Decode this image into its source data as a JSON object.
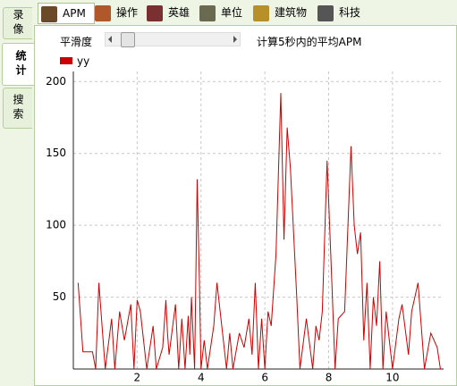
{
  "side_tabs": [
    "录像",
    "统计",
    "搜索"
  ],
  "tabs": [
    "APM",
    "操作",
    "英雄",
    "单位",
    "建筑物",
    "科技"
  ],
  "smoothing_label": "平滑度",
  "description": "计算5秒内的平均APM",
  "chart_data": {
    "type": "line",
    "x": [
      0.15,
      0.3,
      0.6,
      0.7,
      0.8,
      0.9,
      1.0,
      1.2,
      1.3,
      1.45,
      1.6,
      1.8,
      1.9,
      2.0,
      2.1,
      2.3,
      2.5,
      2.6,
      2.8,
      2.9,
      2.95,
      3.0,
      3.2,
      3.3,
      3.4,
      3.5,
      3.6,
      3.65,
      3.7,
      3.8,
      3.88,
      3.95,
      4.0,
      4.1,
      4.2,
      4.4,
      4.5,
      4.7,
      4.8,
      4.9,
      5.0,
      5.2,
      5.35,
      5.5,
      5.6,
      5.7,
      5.8,
      5.9,
      6.0,
      6.1,
      6.2,
      6.35,
      6.5,
      6.6,
      6.7,
      6.8,
      7.0,
      7.1,
      7.3,
      7.5,
      7.6,
      7.7,
      7.8,
      7.95,
      8.1,
      8.2,
      8.3,
      8.5,
      8.7,
      8.8,
      8.9,
      9.0,
      9.1,
      9.2,
      9.3,
      9.4,
      9.5,
      9.6,
      9.7,
      9.8,
      10.0,
      10.2,
      10.3,
      10.5,
      10.6,
      10.8,
      10.9,
      11.0,
      11.2,
      11.4,
      11.5
    ],
    "series": [
      {
        "name": "yy",
        "color": "#cc0000",
        "values": [
          60,
          12,
          12,
          0,
          60,
          30,
          0,
          35,
          0,
          40,
          20,
          45,
          0,
          48,
          40,
          0,
          30,
          0,
          15,
          48,
          25,
          10,
          45,
          0,
          35,
          0,
          37,
          10,
          50,
          0,
          132,
          60,
          0,
          20,
          0,
          30,
          60,
          20,
          0,
          25,
          0,
          25,
          15,
          35,
          10,
          60,
          0,
          35,
          0,
          40,
          30,
          80,
          192,
          90,
          168,
          140,
          50,
          0,
          35,
          0,
          30,
          20,
          40,
          145,
          60,
          0,
          35,
          40,
          155,
          100,
          80,
          95,
          20,
          60,
          0,
          50,
          30,
          75,
          0,
          40,
          0,
          35,
          45,
          10,
          40,
          60,
          30,
          0,
          25,
          15,
          0
        ]
      }
    ],
    "xlim": [
      0,
      11.6
    ],
    "ylim": [
      0,
      207
    ],
    "xticks": [
      2,
      4,
      6,
      8,
      10
    ],
    "yticks": [
      50,
      100,
      150,
      200
    ],
    "grid": true
  }
}
